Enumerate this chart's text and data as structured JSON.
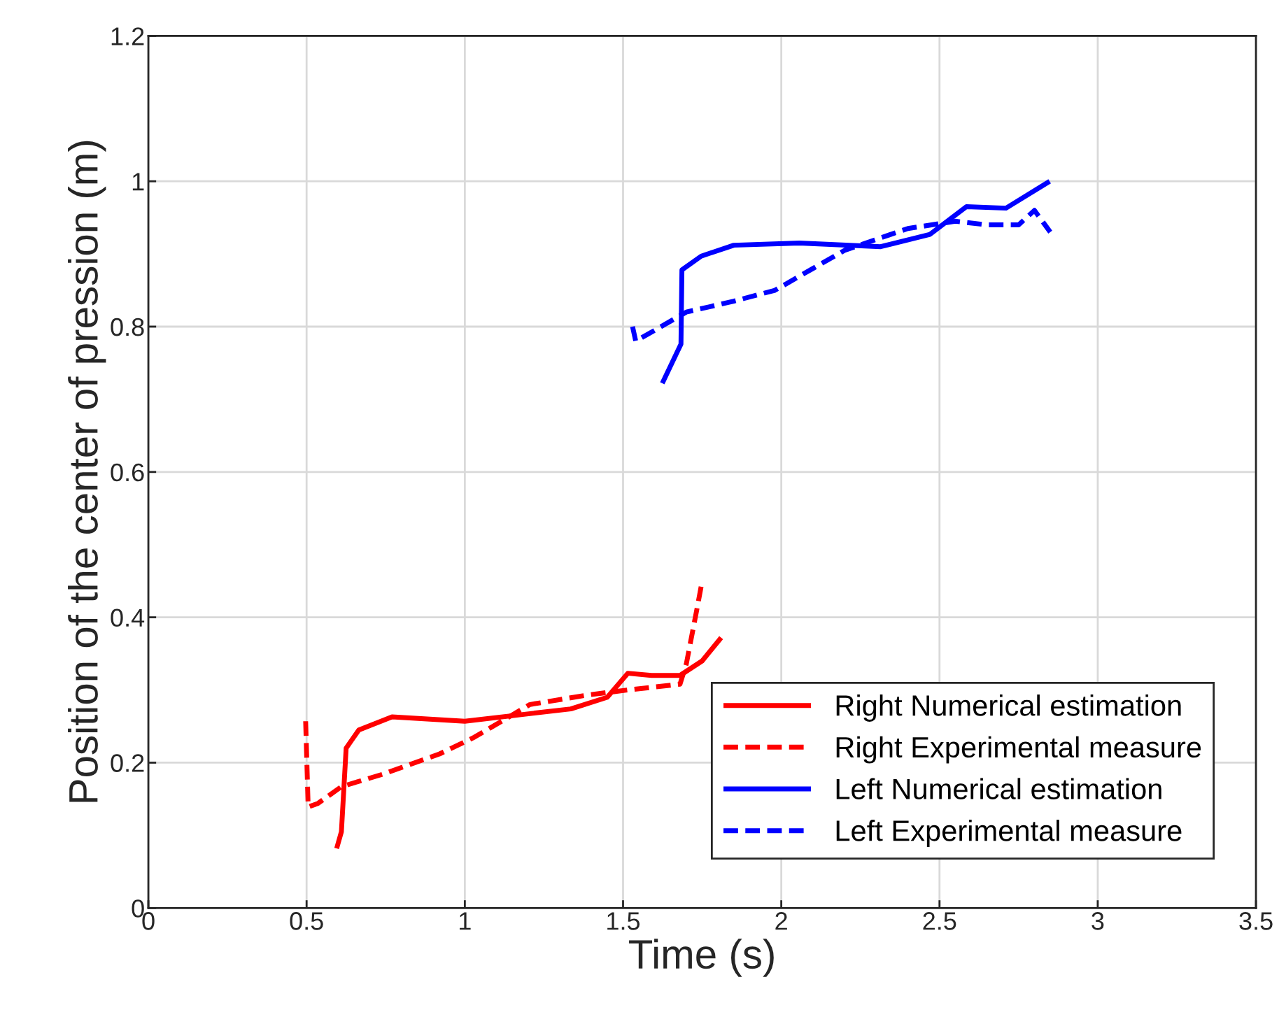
{
  "chart_data": {
    "type": "line",
    "xlabel": "Time (s)",
    "ylabel": "Position of the center of pression (m)",
    "xlim": [
      0,
      3.5
    ],
    "xticks": [
      0,
      0.5,
      1,
      1.5,
      2,
      2.5,
      3,
      3.5
    ],
    "ylim": [
      0,
      1.2
    ],
    "yticks": [
      0,
      0.2,
      0.4,
      0.6,
      0.8,
      1,
      1.2
    ],
    "grid": true,
    "legend": "bottom right",
    "marker": "none",
    "series": [
      {
        "name": "Right Numerical estimation",
        "color": "#ff0000",
        "line_style": "solid",
        "x": [
          0.595,
          0.61,
          0.625,
          0.665,
          0.77,
          1.0,
          1.335,
          1.45,
          1.515,
          1.59,
          1.68,
          1.75,
          1.81
        ],
        "values": [
          0.082,
          0.105,
          0.22,
          0.245,
          0.263,
          0.257,
          0.274,
          0.29,
          0.323,
          0.32,
          0.32,
          0.34,
          0.372
        ]
      },
      {
        "name": "Right Experimental measure",
        "color": "#ff0000",
        "line_style": "dashed",
        "x": [
          0.497,
          0.505,
          0.536,
          0.61,
          0.74,
          0.92,
          1.03,
          1.206,
          1.387,
          1.515,
          1.68,
          1.7,
          1.735,
          1.75
        ],
        "values": [
          0.257,
          0.139,
          0.144,
          0.167,
          0.184,
          0.212,
          0.235,
          0.28,
          0.293,
          0.3,
          0.308,
          0.336,
          0.415,
          0.45
        ]
      },
      {
        "name": "Left Numerical estimation",
        "color": "#0000ff",
        "line_style": "solid",
        "x": [
          1.624,
          1.683,
          1.686,
          1.747,
          1.85,
          2.057,
          2.314,
          2.47,
          2.585,
          2.71,
          2.848
        ],
        "values": [
          0.722,
          0.776,
          0.878,
          0.897,
          0.912,
          0.915,
          0.91,
          0.927,
          0.965,
          0.963,
          1.0
        ]
      },
      {
        "name": "Left Experimental measure",
        "color": "#0000ff",
        "line_style": "dashed",
        "x": [
          1.53,
          1.54,
          1.62,
          1.7,
          1.85,
          1.98,
          2.1,
          2.2,
          2.4,
          2.55,
          2.65,
          2.75,
          2.8,
          2.85
        ],
        "values": [
          0.8,
          0.78,
          0.8,
          0.82,
          0.835,
          0.85,
          0.88,
          0.905,
          0.935,
          0.945,
          0.94,
          0.94,
          0.96,
          0.93
        ]
      }
    ]
  }
}
